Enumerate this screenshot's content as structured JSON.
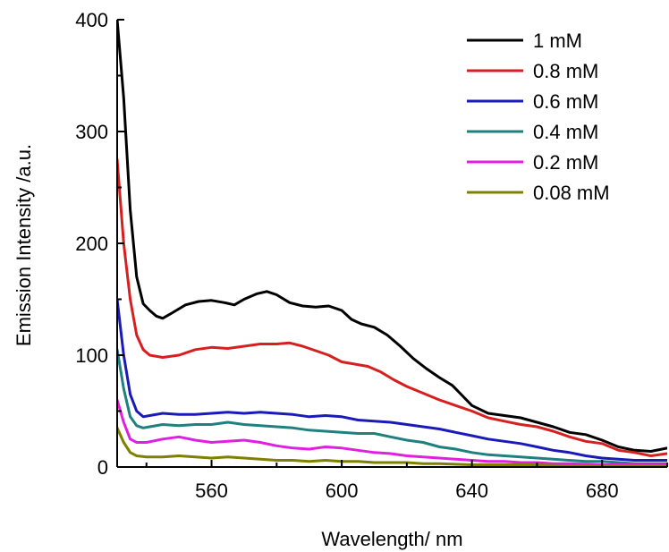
{
  "chart_data": {
    "type": "line",
    "xlabel": "Wavelength/ nm",
    "ylabel": "Emission Intensity /a.u.",
    "xlim": [
      531,
      700
    ],
    "ylim": [
      0,
      400
    ],
    "xticks": [
      560,
      600,
      640,
      680
    ],
    "yticks": [
      0,
      100,
      200,
      300,
      400
    ],
    "grid": false,
    "legend_position": "top-right",
    "series": [
      {
        "name": "1 mM",
        "color": "#000000",
        "points": [
          [
            531,
            400
          ],
          [
            533,
            330
          ],
          [
            535,
            230
          ],
          [
            537,
            170
          ],
          [
            539,
            146
          ],
          [
            541,
            140
          ],
          [
            543,
            135
          ],
          [
            545,
            133
          ],
          [
            548,
            138
          ],
          [
            552,
            145
          ],
          [
            556,
            148
          ],
          [
            560,
            149
          ],
          [
            564,
            147
          ],
          [
            567,
            145
          ],
          [
            570,
            150
          ],
          [
            574,
            155
          ],
          [
            577,
            157
          ],
          [
            580,
            154
          ],
          [
            584,
            147
          ],
          [
            588,
            144
          ],
          [
            592,
            143
          ],
          [
            596,
            144
          ],
          [
            600,
            140
          ],
          [
            603,
            132
          ],
          [
            606,
            128
          ],
          [
            610,
            125
          ],
          [
            614,
            118
          ],
          [
            618,
            108
          ],
          [
            622,
            97
          ],
          [
            626,
            88
          ],
          [
            630,
            80
          ],
          [
            634,
            73
          ],
          [
            637,
            64
          ],
          [
            640,
            55
          ],
          [
            645,
            48
          ],
          [
            650,
            46
          ],
          [
            655,
            44
          ],
          [
            660,
            40
          ],
          [
            665,
            36
          ],
          [
            670,
            31
          ],
          [
            675,
            29
          ],
          [
            680,
            24
          ],
          [
            685,
            18
          ],
          [
            690,
            15
          ],
          [
            695,
            14
          ],
          [
            700,
            17
          ]
        ]
      },
      {
        "name": "0.8 mM",
        "color": "#d62020",
        "points": [
          [
            531,
            275
          ],
          [
            533,
            200
          ],
          [
            535,
            150
          ],
          [
            537,
            118
          ],
          [
            539,
            105
          ],
          [
            541,
            100
          ],
          [
            545,
            98
          ],
          [
            550,
            100
          ],
          [
            555,
            105
          ],
          [
            560,
            107
          ],
          [
            565,
            106
          ],
          [
            570,
            108
          ],
          [
            575,
            110
          ],
          [
            580,
            110
          ],
          [
            584,
            111
          ],
          [
            588,
            108
          ],
          [
            592,
            104
          ],
          [
            596,
            100
          ],
          [
            600,
            94
          ],
          [
            604,
            92
          ],
          [
            608,
            90
          ],
          [
            612,
            85
          ],
          [
            616,
            78
          ],
          [
            620,
            72
          ],
          [
            625,
            66
          ],
          [
            630,
            60
          ],
          [
            635,
            55
          ],
          [
            640,
            50
          ],
          [
            645,
            44
          ],
          [
            650,
            41
          ],
          [
            655,
            38
          ],
          [
            660,
            36
          ],
          [
            665,
            32
          ],
          [
            670,
            27
          ],
          [
            675,
            23
          ],
          [
            680,
            21
          ],
          [
            685,
            15
          ],
          [
            690,
            13
          ],
          [
            695,
            10
          ],
          [
            700,
            12
          ]
        ]
      },
      {
        "name": "0.6 mM",
        "color": "#1a1ab8",
        "points": [
          [
            531,
            150
          ],
          [
            533,
            100
          ],
          [
            535,
            65
          ],
          [
            537,
            50
          ],
          [
            539,
            45
          ],
          [
            541,
            46
          ],
          [
            545,
            48
          ],
          [
            550,
            47
          ],
          [
            555,
            47
          ],
          [
            560,
            48
          ],
          [
            565,
            49
          ],
          [
            570,
            48
          ],
          [
            575,
            49
          ],
          [
            580,
            48
          ],
          [
            585,
            47
          ],
          [
            590,
            45
          ],
          [
            595,
            46
          ],
          [
            600,
            45
          ],
          [
            605,
            42
          ],
          [
            610,
            41
          ],
          [
            615,
            40
          ],
          [
            620,
            38
          ],
          [
            625,
            36
          ],
          [
            630,
            34
          ],
          [
            635,
            31
          ],
          [
            640,
            28
          ],
          [
            645,
            25
          ],
          [
            650,
            23
          ],
          [
            655,
            21
          ],
          [
            660,
            18
          ],
          [
            665,
            15
          ],
          [
            670,
            13
          ],
          [
            675,
            10
          ],
          [
            680,
            8
          ],
          [
            685,
            7
          ],
          [
            690,
            6
          ],
          [
            695,
            6
          ],
          [
            700,
            6
          ]
        ]
      },
      {
        "name": "0.4 mM",
        "color": "#1f8080",
        "points": [
          [
            531,
            105
          ],
          [
            533,
            70
          ],
          [
            535,
            45
          ],
          [
            537,
            37
          ],
          [
            539,
            35
          ],
          [
            541,
            36
          ],
          [
            545,
            38
          ],
          [
            550,
            37
          ],
          [
            555,
            38
          ],
          [
            560,
            38
          ],
          [
            565,
            40
          ],
          [
            570,
            38
          ],
          [
            575,
            37
          ],
          [
            580,
            36
          ],
          [
            585,
            35
          ],
          [
            590,
            33
          ],
          [
            595,
            32
          ],
          [
            600,
            31
          ],
          [
            605,
            30
          ],
          [
            610,
            30
          ],
          [
            615,
            27
          ],
          [
            620,
            24
          ],
          [
            625,
            22
          ],
          [
            630,
            18
          ],
          [
            635,
            16
          ],
          [
            640,
            13
          ],
          [
            645,
            11
          ],
          [
            650,
            10
          ],
          [
            655,
            9
          ],
          [
            660,
            8
          ],
          [
            665,
            7
          ],
          [
            670,
            6
          ],
          [
            675,
            5
          ],
          [
            680,
            5
          ],
          [
            685,
            4
          ],
          [
            690,
            3
          ],
          [
            695,
            3
          ],
          [
            700,
            3
          ]
        ]
      },
      {
        "name": "0.2 mM",
        "color": "#e020e0",
        "points": [
          [
            531,
            60
          ],
          [
            533,
            40
          ],
          [
            535,
            25
          ],
          [
            537,
            22
          ],
          [
            540,
            22
          ],
          [
            545,
            25
          ],
          [
            550,
            27
          ],
          [
            555,
            24
          ],
          [
            560,
            22
          ],
          [
            565,
            23
          ],
          [
            570,
            24
          ],
          [
            575,
            22
          ],
          [
            580,
            19
          ],
          [
            585,
            17
          ],
          [
            590,
            16
          ],
          [
            595,
            18
          ],
          [
            600,
            17
          ],
          [
            605,
            15
          ],
          [
            610,
            13
          ],
          [
            615,
            12
          ],
          [
            620,
            10
          ],
          [
            625,
            9
          ],
          [
            630,
            8
          ],
          [
            635,
            7
          ],
          [
            640,
            6
          ],
          [
            645,
            5
          ],
          [
            650,
            5
          ],
          [
            655,
            4
          ],
          [
            660,
            4
          ],
          [
            665,
            3
          ],
          [
            670,
            3
          ],
          [
            680,
            2
          ],
          [
            690,
            2
          ],
          [
            700,
            2
          ]
        ]
      },
      {
        "name": "0.08 mM",
        "color": "#808000",
        "points": [
          [
            531,
            35
          ],
          [
            533,
            22
          ],
          [
            535,
            13
          ],
          [
            537,
            10
          ],
          [
            540,
            9
          ],
          [
            545,
            9
          ],
          [
            550,
            10
          ],
          [
            555,
            9
          ],
          [
            560,
            8
          ],
          [
            565,
            9
          ],
          [
            570,
            8
          ],
          [
            575,
            7
          ],
          [
            580,
            6
          ],
          [
            585,
            6
          ],
          [
            590,
            5
          ],
          [
            595,
            6
          ],
          [
            600,
            5
          ],
          [
            605,
            5
          ],
          [
            610,
            4
          ],
          [
            615,
            4
          ],
          [
            620,
            4
          ],
          [
            625,
            3
          ],
          [
            630,
            3
          ],
          [
            640,
            2
          ],
          [
            650,
            2
          ],
          [
            660,
            2
          ],
          [
            670,
            1
          ],
          [
            680,
            1
          ],
          [
            690,
            1
          ],
          [
            700,
            1
          ]
        ]
      }
    ]
  }
}
